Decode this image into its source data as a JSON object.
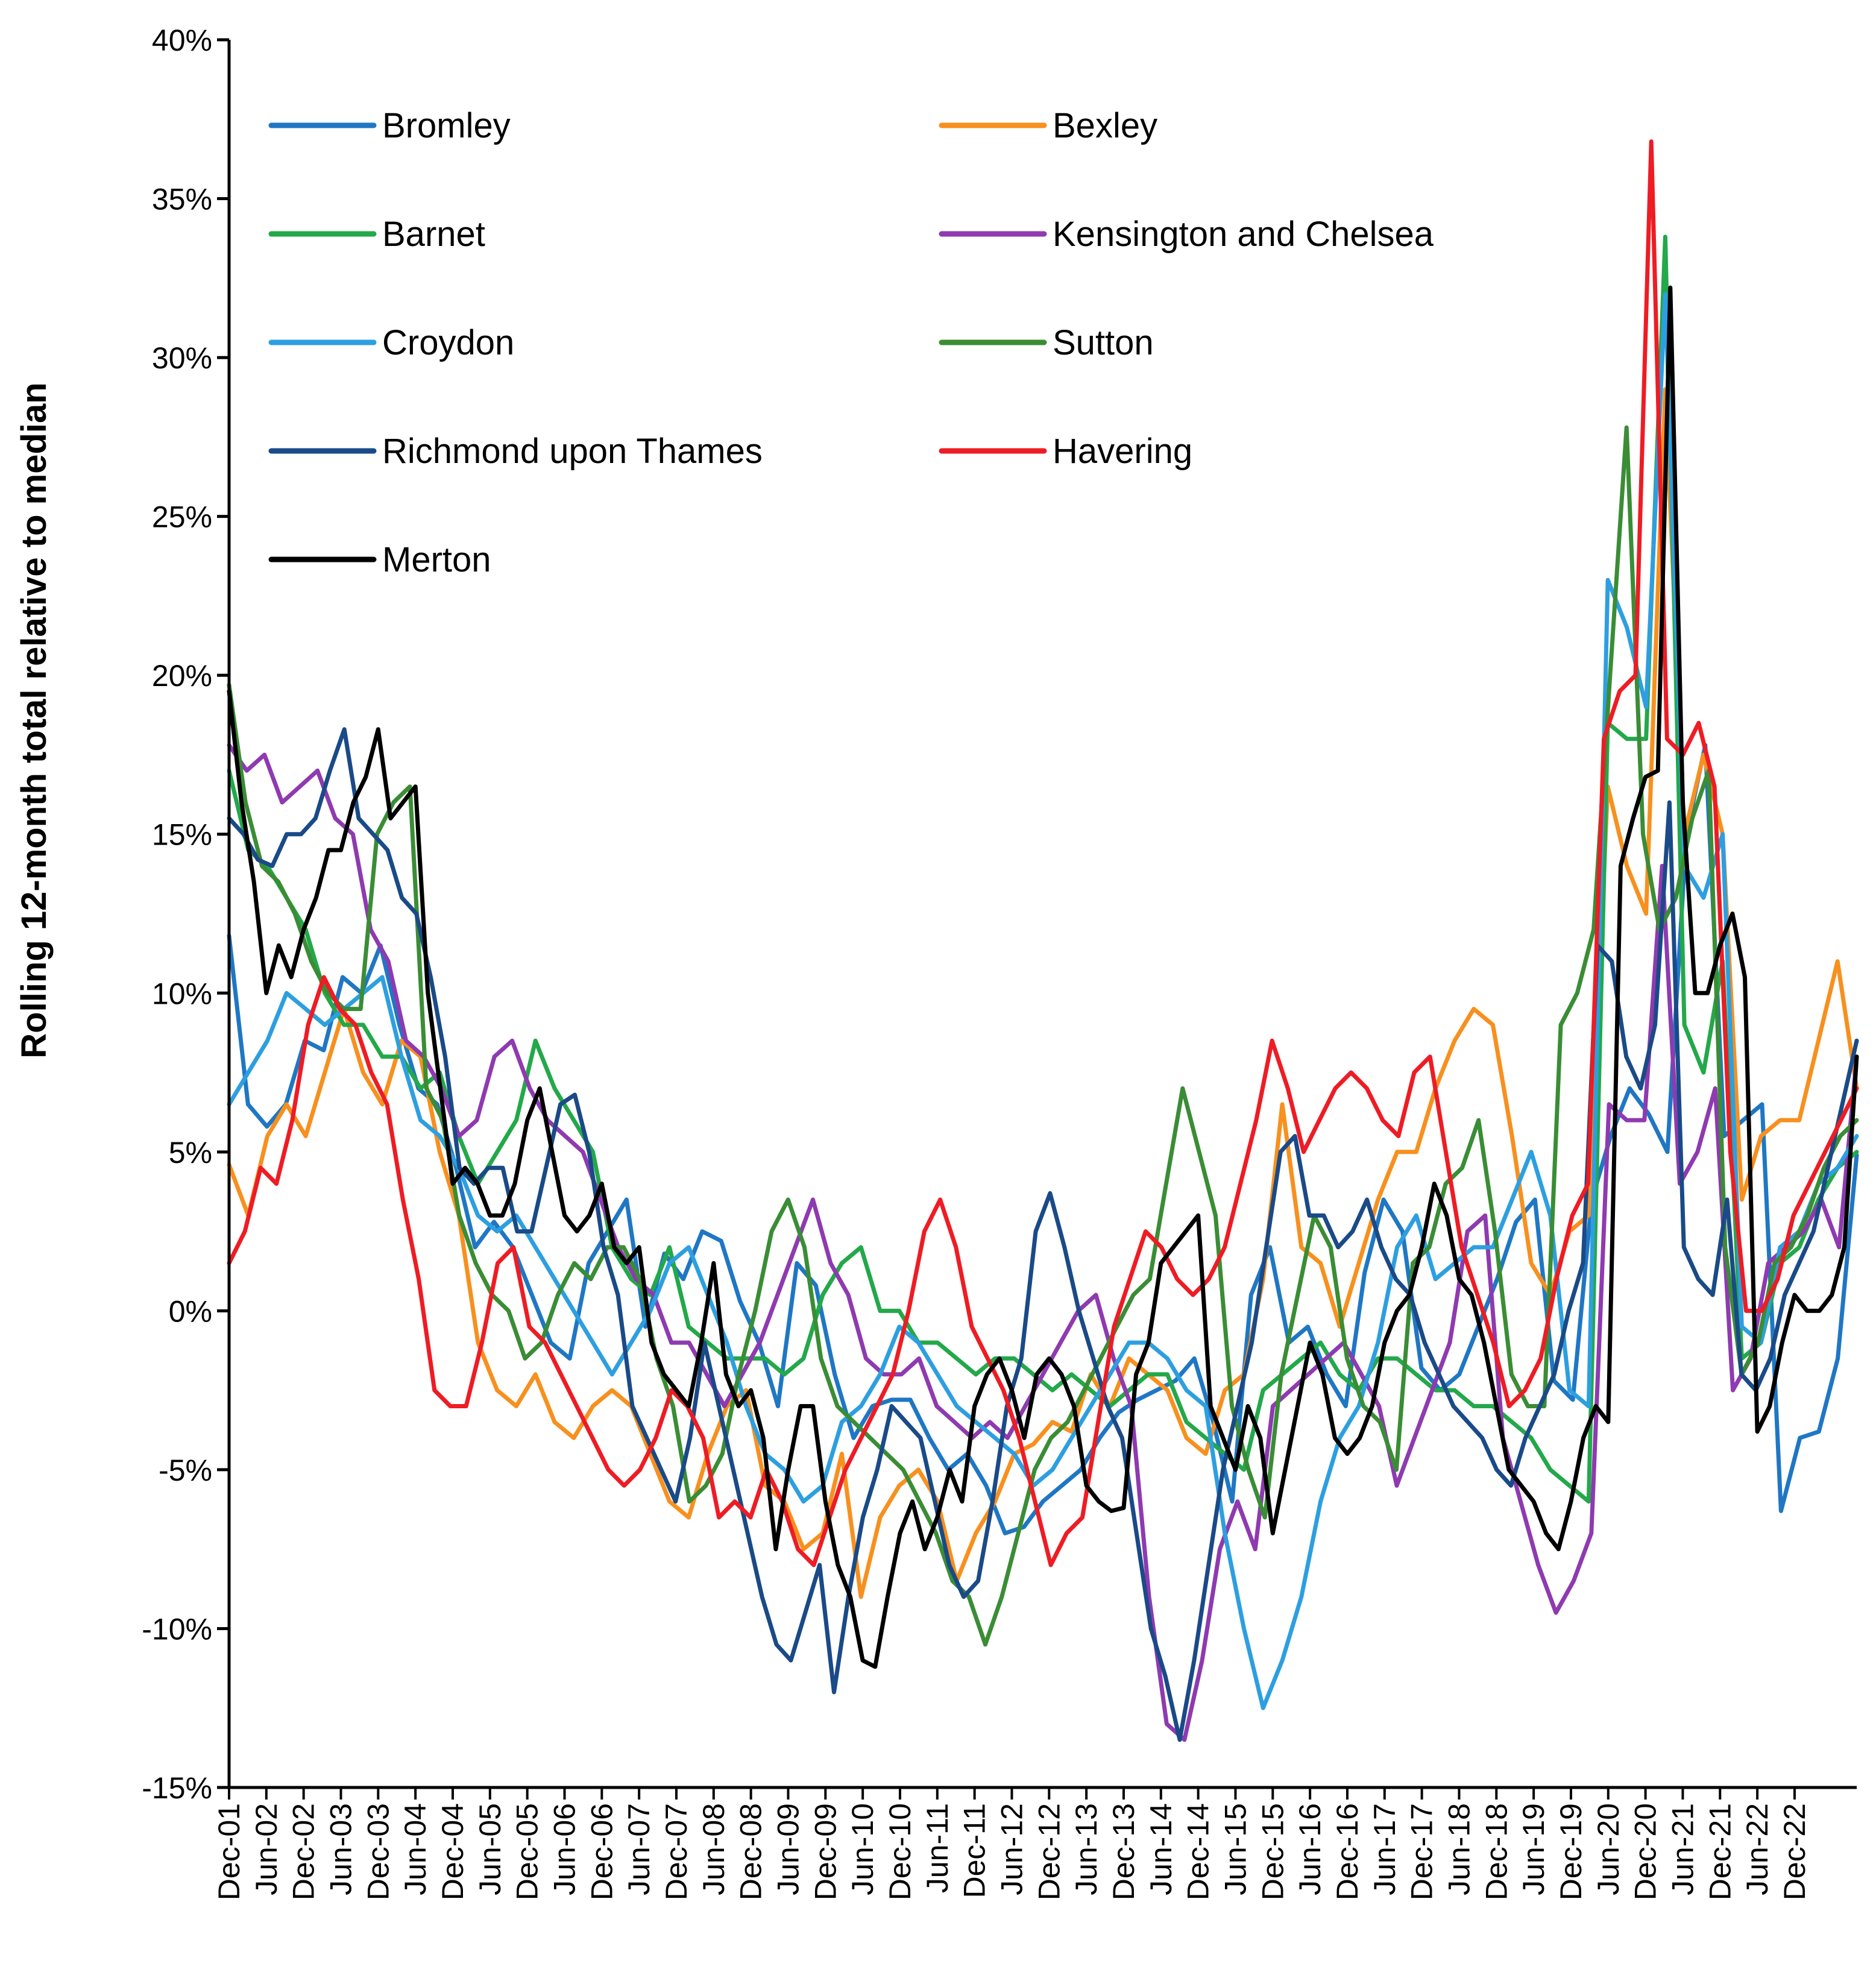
{
  "chart_data": {
    "type": "line",
    "title": "",
    "xlabel": "",
    "ylabel": "Rolling 12-month total relative to median",
    "ylim": [
      -15,
      40
    ],
    "y_ticks": [
      40,
      35,
      30,
      25,
      20,
      15,
      10,
      5,
      0,
      -5,
      -10,
      -15
    ],
    "y_tick_labels": [
      "40%",
      "35%",
      "30%",
      "25%",
      "20%",
      "15%",
      "10%",
      "5%",
      "0%",
      "-5%",
      "-10%",
      "-15%"
    ],
    "x_tick_labels": [
      "Dec-01",
      "Jun-02",
      "Dec-02",
      "Jun-03",
      "Dec-03",
      "Jun-04",
      "Dec-04",
      "Jun-05",
      "Dec-05",
      "Jun-06",
      "Dec-06",
      "Jun-07",
      "Dec-07",
      "Jun-08",
      "Dec-08",
      "Jun-09",
      "Dec-09",
      "Jun-10",
      "Dec-10",
      "Jun-11",
      "Dec-11",
      "Jun-12",
      "Dec-12",
      "Jun-13",
      "Dec-13",
      "Jun-14",
      "Dec-14",
      "Jun-15",
      "Dec-15",
      "Jun-16",
      "Dec-16",
      "Jun-17",
      "Dec-17",
      "Jun-18",
      "Dec-18",
      "Jun-19",
      "Dec-19",
      "Jun-20",
      "Dec-20",
      "Jun-21",
      "Dec-21",
      "Jun-22",
      "Dec-22"
    ],
    "grid": false,
    "legend_position": "top-left",
    "x_step_months": 6,
    "series": [
      {
        "name": "Bromley",
        "color": "#1f77c4",
        "values": [
          11.8,
          6.5,
          5.8,
          6.5,
          8.5,
          8.2,
          10.5,
          10,
          11.5,
          9,
          7,
          6.5,
          4.5,
          2,
          2.8,
          2,
          0.5,
          -1,
          -1.5,
          1.5,
          2.5,
          3.5,
          -0.5,
          1.8,
          1,
          2.5,
          2.2,
          0.3,
          -1,
          -3,
          1.5,
          0.8,
          -2,
          -4,
          -3,
          -2.8,
          -2.8,
          -4,
          -5,
          -4.5,
          -5.5,
          -7,
          -6.8,
          -6,
          -5.5,
          -5,
          -4,
          -3.2,
          -2.8,
          -2.5,
          -2.2,
          -1.5,
          -3.5,
          -6,
          0.5,
          2,
          -1,
          -0.5,
          -2,
          -3,
          1.2,
          3.5,
          2.5,
          -1.8,
          -2.5,
          -2,
          -0.5,
          1,
          2.8,
          3.5,
          -2.2,
          -2.8,
          3.5,
          5.5,
          7,
          6.2,
          5,
          15,
          17.8,
          5.5,
          6,
          6.5,
          -6.3,
          -4,
          -3.8,
          -1.5,
          4.9
        ]
      },
      {
        "name": "Bexley",
        "color": "#f7901e",
        "values": [
          4.6,
          3,
          5.5,
          6.5,
          5.5,
          7.5,
          9.5,
          7.5,
          6.5,
          8.5,
          8,
          5,
          3,
          -1,
          -2.5,
          -3,
          -2,
          -3.5,
          -4,
          -3,
          -2.5,
          -3,
          -4.5,
          -6,
          -6.5,
          -4.5,
          -3,
          -2.5,
          -5.5,
          -6,
          -7.5,
          -7,
          -4.5,
          -9,
          -6.5,
          -5.5,
          -5,
          -6,
          -8.5,
          -7,
          -6,
          -4.5,
          -4.2,
          -3.5,
          -3.8,
          -2,
          -3,
          -1.5,
          -2,
          -2.5,
          -4,
          -4.5,
          -2.5,
          -2,
          1,
          6.5,
          2,
          1.5,
          -0.5,
          1.5,
          3.5,
          5,
          5,
          7,
          8.5,
          9.5,
          9,
          5.5,
          1.5,
          0.5,
          2.5,
          3,
          16.5,
          14,
          12.5,
          29,
          15,
          17.5,
          15,
          3.5,
          5.5,
          6,
          6,
          8.5,
          11,
          7
        ]
      },
      {
        "name": "Barnet",
        "color": "#23a84a",
        "values": [
          17,
          14.5,
          14,
          13,
          12,
          10,
          9,
          9,
          8,
          8,
          7,
          7.5,
          5.5,
          4,
          5,
          6,
          8.5,
          7,
          6,
          5,
          2,
          1,
          0.5,
          2,
          -0.5,
          -1,
          -1.5,
          -1.5,
          -1.5,
          -2,
          -1.5,
          0.5,
          1.5,
          2,
          0,
          0,
          -1,
          -1,
          -1.5,
          -2,
          -1.5,
          -1.5,
          -2,
          -2.5,
          -2,
          -2.5,
          -3,
          -2.5,
          -2,
          -2,
          -3.5,
          -4,
          -4.5,
          -5,
          -2.5,
          -2,
          -1.5,
          -1,
          -2,
          -2.5,
          -1.5,
          -1.5,
          -2,
          -2.5,
          -2.5,
          -3,
          -3,
          -3.5,
          -4,
          -5,
          -5.5,
          -6,
          18.5,
          18,
          18,
          33.8,
          9,
          7.5,
          11,
          -1.5,
          -1,
          1.5,
          2,
          3.5,
          4.5,
          5
        ]
      },
      {
        "name": "Kensington and Chelsea",
        "color": "#8e3ab0",
        "values": [
          17.8,
          17,
          17.5,
          16,
          16.5,
          17,
          15.5,
          15,
          12,
          11,
          8.5,
          8,
          7,
          5.5,
          6,
          8,
          8.5,
          7,
          6,
          5.5,
          5,
          3.5,
          2,
          1,
          0.5,
          -1,
          -1,
          -2,
          -3,
          -2,
          -1,
          0.5,
          2,
          3.5,
          1.5,
          0.5,
          -1.5,
          -2,
          -2,
          -1.5,
          -3,
          -3.5,
          -4,
          -3.5,
          -4,
          -3,
          -2,
          -1,
          0,
          0.5,
          -1.5,
          -3,
          -9,
          -13,
          -13.5,
          -11,
          -7.5,
          -6,
          -7.5,
          -3,
          -2.5,
          -2,
          -1.5,
          -1,
          -2,
          -3,
          -5.5,
          -4,
          -2.5,
          -1,
          2.5,
          3,
          -4,
          -6,
          -8,
          -9.5,
          -8.5,
          -7,
          6.5,
          6,
          6,
          14,
          4,
          5,
          7,
          -2.5,
          -1.5,
          1.5,
          2,
          2.5,
          3.5,
          2,
          8
        ]
      },
      {
        "name": "Croydon",
        "color": "#2d9fe0",
        "values": [
          6.5,
          7.5,
          8.5,
          10,
          9.5,
          9,
          9.5,
          10,
          10.5,
          8,
          6,
          5.5,
          4.5,
          3,
          2.5,
          3,
          2,
          1,
          0,
          -1,
          -2,
          -1,
          0,
          1.5,
          2,
          0.5,
          -1,
          -3,
          -4.5,
          -5,
          -6,
          -5.5,
          -3.5,
          -3,
          -2,
          -0.5,
          -1,
          -2,
          -3,
          -3.5,
          -4,
          -4.5,
          -5.5,
          -5,
          -4,
          -3,
          -2,
          -1,
          -1,
          -1.5,
          -2.5,
          -3,
          -7,
          -10,
          -12.5,
          -11,
          -9,
          -6,
          -4,
          -3,
          -1,
          2,
          3,
          1,
          1.5,
          2,
          2,
          3.5,
          5,
          3,
          -2.5,
          -3,
          23,
          21.5,
          19,
          32,
          14,
          13,
          15,
          -0.5,
          -1,
          2,
          2.5,
          4,
          4.5,
          5.5
        ]
      },
      {
        "name": "Sutton",
        "color": "#3a8d35",
        "values": [
          19.7,
          16,
          14,
          13.5,
          12.5,
          11,
          10,
          9.5,
          9.5,
          15,
          16,
          16.5,
          7,
          6,
          3,
          1.5,
          0.5,
          0,
          -1.5,
          -1,
          0.5,
          1.5,
          1,
          2,
          2,
          1,
          -1.5,
          -3,
          -6,
          -5.5,
          -4.5,
          -2,
          0,
          2.5,
          3.5,
          2,
          -1.5,
          -3,
          -3.5,
          -4,
          -4.5,
          -5,
          -6,
          -7,
          -8.5,
          -9,
          -10.5,
          -9,
          -7,
          -5,
          -4,
          -3.5,
          -2.5,
          -1.5,
          -0.5,
          0.5,
          1,
          4,
          7,
          5,
          3,
          -3,
          -5,
          -6.5,
          -2,
          0.5,
          3,
          2,
          -1.5,
          -3,
          -3.5,
          -5,
          1.5,
          2,
          4,
          4.5,
          6,
          2.5,
          -2,
          -3,
          -3,
          9,
          10,
          12,
          20,
          27.8,
          15,
          12,
          13,
          15.5,
          17,
          2,
          -2,
          -1,
          1.5,
          2,
          3,
          4.5,
          5.5,
          6
        ]
      },
      {
        "name": "Richmond upon Thames",
        "color": "#1a4a87",
        "values": [
          15.5,
          15,
          14.2,
          14,
          15,
          15,
          15.5,
          17,
          18.3,
          15.5,
          15,
          14.5,
          13,
          12.5,
          10.5,
          8,
          4.5,
          4,
          4.5,
          4.5,
          2.5,
          2.5,
          4.5,
          6.5,
          6.8,
          5,
          2,
          0.5,
          -3,
          -4,
          -5,
          -6,
          -4,
          -1,
          -3,
          -5,
          -7,
          -9,
          -10.5,
          -11,
          -9.5,
          -8,
          -12,
          -9,
          -6.5,
          -5,
          -3,
          -3.5,
          -4,
          -6,
          -8,
          -9,
          -8.5,
          -6,
          -3,
          -1.5,
          2.5,
          3.7,
          2,
          0,
          -1.5,
          -3,
          -4,
          -7,
          -10,
          -11.5,
          -13.5,
          -11,
          -8,
          -5,
          -3,
          -1,
          2,
          5,
          5.5,
          3,
          3,
          2,
          2.5,
          3.5,
          2,
          1,
          0.5,
          -1,
          -2,
          -3,
          -3.5,
          -4,
          -5,
          -5.5,
          -4,
          -3,
          -2,
          0,
          1.5,
          11.5,
          11,
          8,
          7,
          9,
          16,
          2,
          1,
          0.5,
          3.5,
          -2,
          -2.5,
          -1.5,
          0.5,
          1.5,
          2.5,
          4.5,
          6.5,
          8.5
        ]
      },
      {
        "name": "Havering",
        "color": "#ee1c24",
        "values": [
          1.5,
          2.5,
          4.5,
          4,
          6,
          9,
          10.5,
          9.5,
          9,
          7.5,
          6.5,
          3.5,
          1,
          -2.5,
          -3,
          -3,
          -1,
          1.5,
          2,
          -0.5,
          -1,
          -2,
          -3,
          -4,
          -5,
          -5.5,
          -5,
          -4,
          -2.5,
          -3,
          -4,
          -6.5,
          -6,
          -6.5,
          -5,
          -6,
          -7.5,
          -8,
          -6.5,
          -5,
          -4,
          -3,
          -2,
          0,
          2.5,
          3.5,
          2,
          -0.5,
          -1.5,
          -2.5,
          -4,
          -6,
          -8,
          -7,
          -6.5,
          -3.5,
          -0.5,
          1,
          2.5,
          2,
          1,
          0.5,
          1,
          2,
          4,
          6,
          8.5,
          7,
          5,
          6,
          7,
          7.5,
          7,
          6,
          5.5,
          7.5,
          8,
          5,
          2,
          0.5,
          -1,
          -3,
          -2.5,
          -1.5,
          1,
          3,
          4,
          18,
          19.5,
          20,
          36.8,
          18,
          17.5,
          18.5,
          16.5,
          5,
          0,
          0,
          1,
          3,
          4,
          5,
          6,
          7
        ]
      },
      {
        "name": "Merton",
        "color": "#000000",
        "values": [
          19.5,
          16,
          13.5,
          10,
          11.5,
          10.5,
          12,
          13,
          14.5,
          14.5,
          16,
          16.8,
          18.3,
          15.5,
          16,
          16.5,
          10,
          7,
          4,
          4.5,
          4,
          3,
          3,
          4,
          6,
          7,
          5,
          3,
          2.5,
          3,
          4,
          2,
          1.5,
          2,
          -1,
          -2,
          -2.5,
          -3,
          -1,
          1.5,
          -2,
          -3,
          -2.5,
          -4,
          -7.5,
          -5,
          -3,
          -3,
          -6,
          -8,
          -9,
          -11,
          -11.2,
          -9,
          -7,
          -6,
          -7.5,
          -6.5,
          -5,
          -6,
          -3,
          -2,
          -1.5,
          -2.5,
          -4,
          -2,
          -1.5,
          -2,
          -3,
          -5.5,
          -6,
          -6.3,
          -6.2,
          -2,
          -1,
          1.5,
          2,
          2.5,
          3,
          -3,
          -4,
          -5,
          -3,
          -4,
          -7,
          -5,
          -3,
          -1,
          -2,
          -4,
          -4.5,
          -4,
          -3,
          -1,
          0,
          0.5,
          2,
          4,
          3,
          1,
          0.5,
          -1,
          -3,
          -5,
          -5.5,
          -6,
          -7,
          -7.5,
          -6,
          -4,
          -3,
          -3.5,
          14,
          15.5,
          16.8,
          17,
          32.2,
          16,
          10,
          10,
          11.5,
          12.5,
          10.5,
          -3.8,
          -3,
          -1,
          0.5,
          0,
          0,
          0.5,
          2,
          8
        ]
      }
    ]
  }
}
